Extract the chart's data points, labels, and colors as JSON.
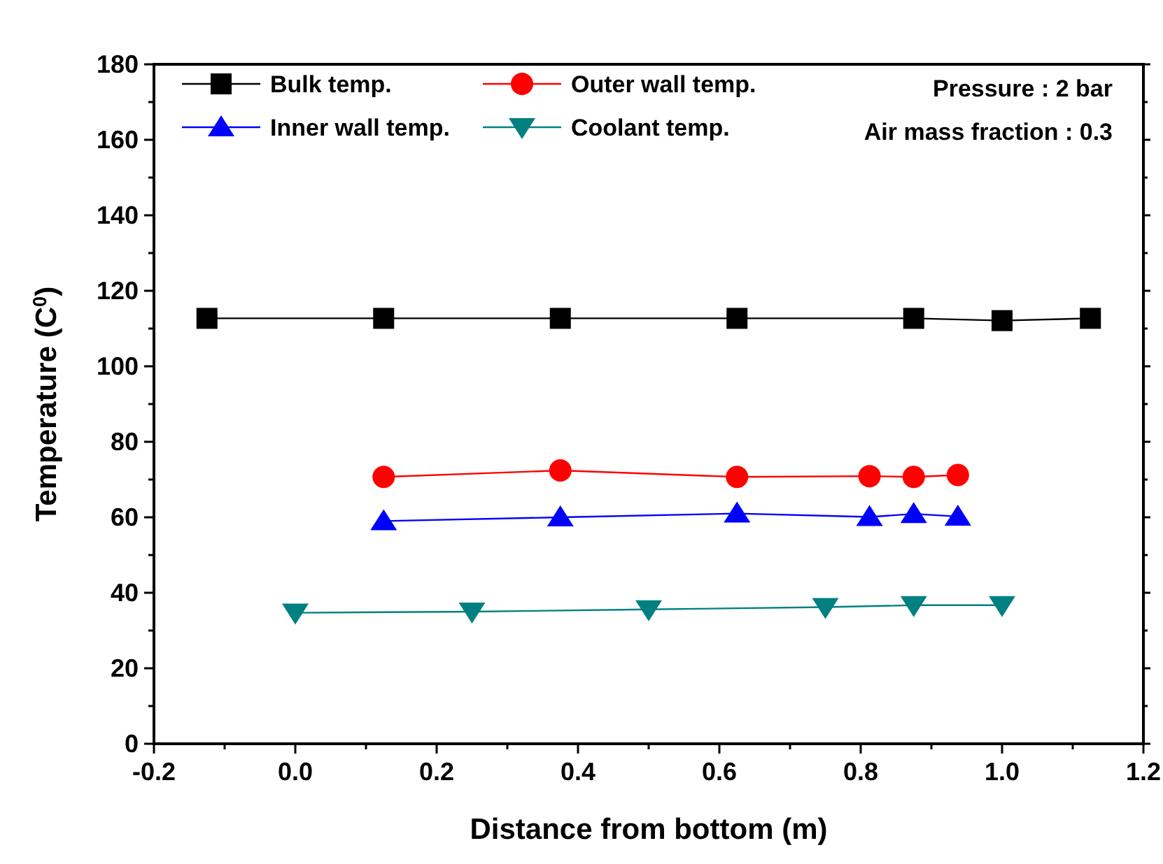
{
  "chart_data": {
    "type": "line",
    "xlabel": "Distance from bottom (m)",
    "ylabel": "Temperature (C$^{0}$)",
    "xlim": [
      -0.2,
      1.2
    ],
    "xticks": [
      {
        "value": -0.2,
        "label": "-0.2"
      },
      {
        "value": 0,
        "label": "0.0"
      },
      {
        "value": 0.2,
        "label": "0.2"
      },
      {
        "value": 0.4,
        "label": "0.4"
      },
      {
        "value": 0.6,
        "label": "0.6"
      },
      {
        "value": 0.8,
        "label": "0.8"
      },
      {
        "value": 1,
        "label": "1.0"
      },
      {
        "value": 1.2,
        "label": "1.2"
      }
    ],
    "ylim": [
      0,
      180
    ],
    "yticks": [
      0,
      20,
      40,
      60,
      80,
      100,
      120,
      140,
      160,
      180
    ],
    "grid": false,
    "legend": "top left",
    "line_style": "solid",
    "annotations": [
      "Pressure : 2 bar",
      "Air mass fraction : 0.3"
    ],
    "series": [
      {
        "name": "Bulk temp.",
        "color": "#000000",
        "marker": "square",
        "x": [
          -0.125,
          0.125,
          0.375,
          0.625,
          0.875,
          1.0,
          1.125
        ],
        "values": [
          112.7,
          112.7,
          112.7,
          112.7,
          112.7,
          112.1,
          112.7
        ]
      },
      {
        "name": "Outer wall temp.",
        "color": "#ff0000",
        "marker": "circle",
        "x": [
          0.125,
          0.375,
          0.625,
          0.8125,
          0.875,
          0.9375
        ],
        "values": [
          70.7,
          72.4,
          70.7,
          70.9,
          70.7,
          71.2
        ]
      },
      {
        "name": "Inner wall temp.",
        "color": "#0000ff",
        "marker": "triangle",
        "x": [
          0.125,
          0.375,
          0.625,
          0.8125,
          0.875,
          0.9375
        ],
        "values": [
          59,
          60,
          61,
          60.1,
          60.9,
          60.2
        ]
      },
      {
        "name": "Coolant temp.",
        "color": "#008080",
        "marker": "triangle-down",
        "x": [
          0,
          0.25,
          0.5,
          0.75,
          0.875,
          1.0
        ],
        "values": [
          34.7,
          35,
          35.6,
          36.2,
          36.7,
          36.7
        ]
      }
    ]
  }
}
